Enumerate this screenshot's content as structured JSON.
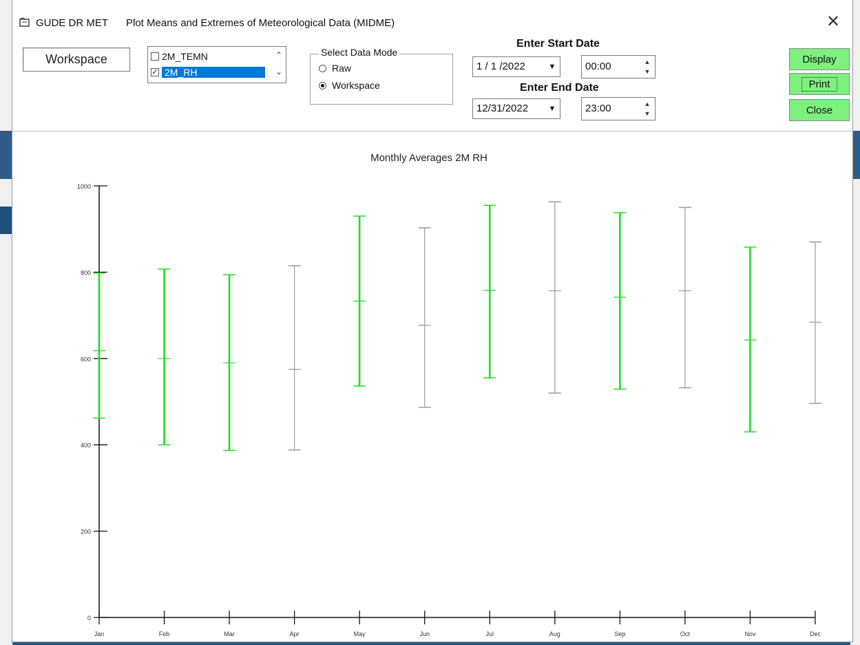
{
  "window": {
    "app_name": "GUDE DR MET",
    "title": "Plot Means and Extremes of Meteorological Data (MIDME)",
    "close_icon": "close-icon"
  },
  "workspace_label": "Workspace",
  "variables": {
    "items": [
      {
        "label": "2M_TEMN",
        "checked": false,
        "selected": false
      },
      {
        "label": "2M_RH",
        "checked": true,
        "selected": true
      }
    ]
  },
  "data_mode": {
    "legend": "Select Data Mode",
    "options": [
      {
        "label": "Raw",
        "selected": false
      },
      {
        "label": "Workspace",
        "selected": true
      }
    ]
  },
  "dates": {
    "start_label": "Enter Start Date",
    "start_date": "1 / 1 /2022",
    "start_time": "00:00",
    "end_label": "Enter End Date",
    "end_date": "12/31/2022",
    "end_time": "23:00"
  },
  "buttons": {
    "display": "Display",
    "print": "Print",
    "close": "Close"
  },
  "colors": {
    "button_green": "#7ef07e",
    "selection_blue": "#0078d7",
    "series_green": "#22dd22",
    "series_gray": "#9a9a9a"
  },
  "chart_data": {
    "type": "error-bar",
    "title": "Monthly Averages 2M RH",
    "categories": [
      "Jan",
      "Feb",
      "Mar",
      "Apr",
      "May",
      "Jun",
      "Jul",
      "Aug",
      "Sep",
      "Oct",
      "Nov",
      "Dec"
    ],
    "y_ticks": [
      "0",
      "200",
      "400",
      "600",
      "800",
      "1000"
    ],
    "ylim": [
      0,
      1000
    ],
    "series": [
      {
        "min": 462,
        "mean": 618,
        "max": 798,
        "color": "green"
      },
      {
        "min": 400,
        "mean": 600,
        "max": 807,
        "color": "green"
      },
      {
        "min": 387,
        "mean": 590,
        "max": 794,
        "color": "green"
      },
      {
        "min": 388,
        "mean": 575,
        "max": 815,
        "color": "gray"
      },
      {
        "min": 536,
        "mean": 733,
        "max": 930,
        "color": "green"
      },
      {
        "min": 487,
        "mean": 677,
        "max": 903,
        "color": "gray"
      },
      {
        "min": 555,
        "mean": 758,
        "max": 955,
        "color": "green"
      },
      {
        "min": 520,
        "mean": 757,
        "max": 963,
        "color": "gray"
      },
      {
        "min": 529,
        "mean": 742,
        "max": 938,
        "color": "green"
      },
      {
        "min": 532,
        "mean": 757,
        "max": 950,
        "color": "gray"
      },
      {
        "min": 430,
        "mean": 643,
        "max": 858,
        "color": "green"
      },
      {
        "min": 496,
        "mean": 684,
        "max": 870,
        "color": "gray"
      }
    ]
  }
}
